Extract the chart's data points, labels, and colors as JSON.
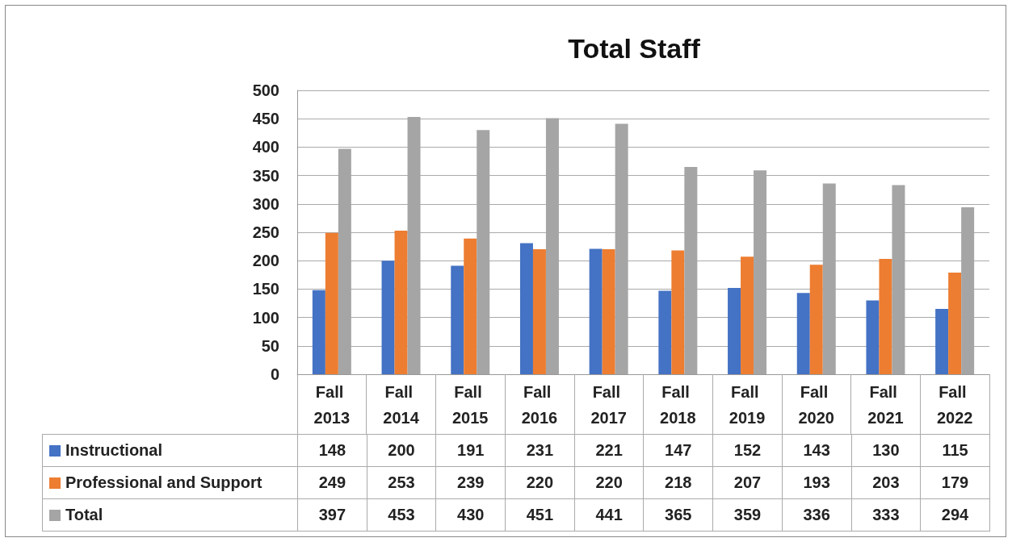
{
  "chart_data": {
    "type": "bar",
    "title": "Total Staff",
    "categories": [
      "Fall 2013",
      "Fall 2014",
      "Fall 2015",
      "Fall 2016",
      "Fall 2017",
      "Fall 2018",
      "Fall 2019",
      "Fall 2020",
      "Fall 2021",
      "Fall 2022"
    ],
    "series": [
      {
        "name": "Instructional",
        "color": "#4472c4",
        "values": [
          148,
          200,
          191,
          231,
          221,
          147,
          152,
          143,
          130,
          115
        ]
      },
      {
        "name": "Professional and Support",
        "color": "#ed7d31",
        "values": [
          249,
          253,
          239,
          220,
          220,
          218,
          207,
          193,
          203,
          179
        ]
      },
      {
        "name": "Total",
        "color": "#a5a5a5",
        "values": [
          397,
          453,
          430,
          451,
          441,
          365,
          359,
          336,
          333,
          294
        ]
      }
    ],
    "ylim": [
      0,
      500
    ],
    "yticks": [
      0,
      50,
      100,
      150,
      200,
      250,
      300,
      350,
      400,
      450,
      500
    ],
    "grid": "y",
    "legend": "bottom",
    "data_labels": true
  }
}
